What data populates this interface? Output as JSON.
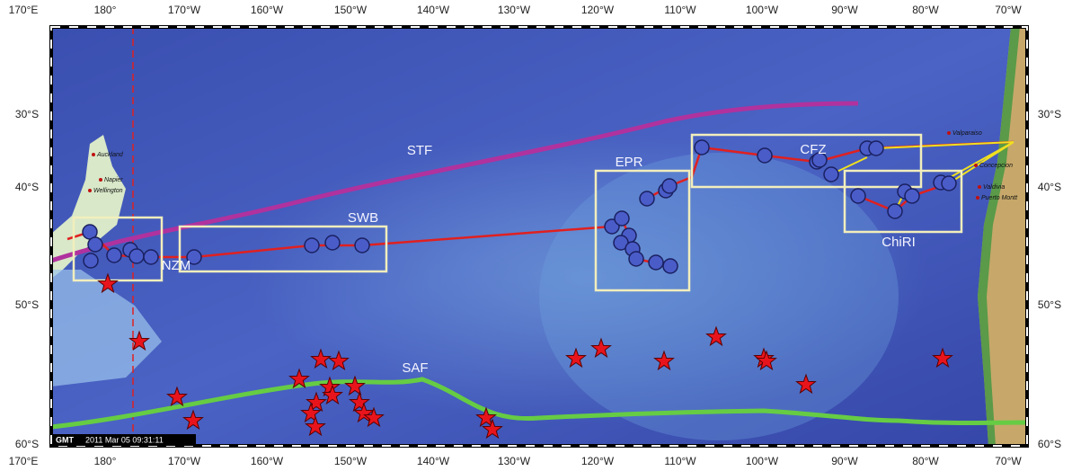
{
  "longitude_labels": [
    "170°E",
    "180°",
    "170°W",
    "160°W",
    "150°W",
    "140°W",
    "130°W",
    "120°W",
    "110°W",
    "100°W",
    "90°W",
    "80°W",
    "70°W"
  ],
  "latitude_labels": [
    "30°S",
    "40°S",
    "50°S",
    "60°S"
  ],
  "regions": [
    {
      "label": "STF"
    },
    {
      "label": "SWB"
    },
    {
      "label": "EPR"
    },
    {
      "label": "CFZ"
    },
    {
      "label": "ChiRI"
    },
    {
      "label": "NZM"
    },
    {
      "label": "SAF"
    }
  ],
  "places": [
    {
      "label": "Auckland"
    },
    {
      "label": "Napier"
    },
    {
      "label": "Wellington"
    },
    {
      "label": "Valparaiso"
    },
    {
      "label": "Concepcion"
    },
    {
      "label": "Valdivia"
    },
    {
      "label": "Puerto Montt"
    }
  ],
  "logo": "GMT",
  "timestamp": "2011 Mar 05 09:31:11"
}
